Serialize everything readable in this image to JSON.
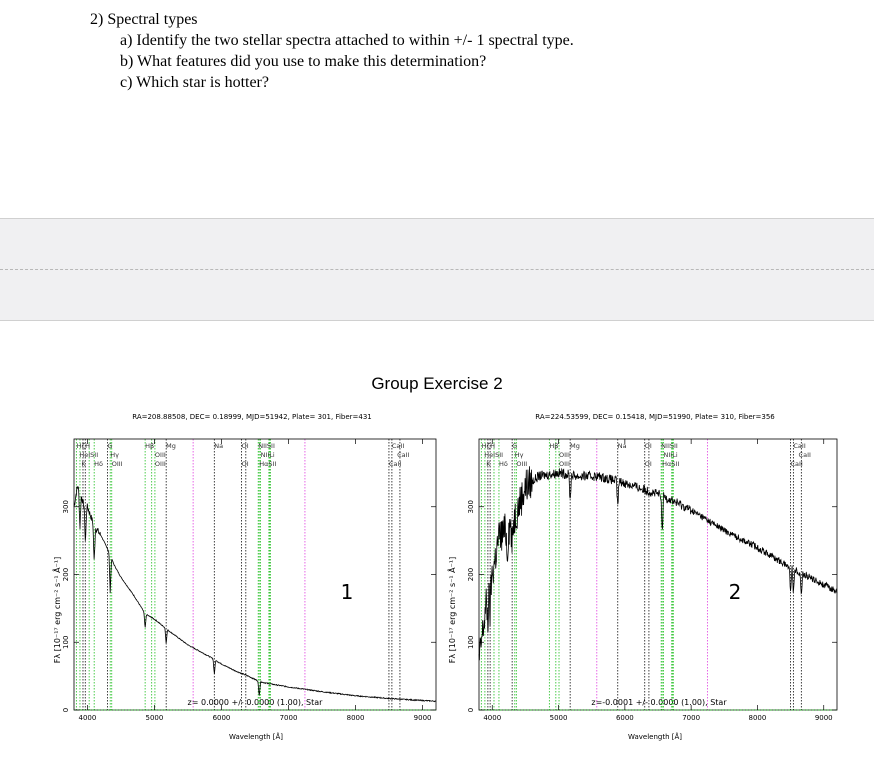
{
  "question": {
    "heading": "2)  Spectral types",
    "items": [
      "a)  Identify the two stellar spectra attached to within +/- 1 spectral type.",
      "b)  What features did you use to make this determination?",
      "c)  Which star is hotter?"
    ]
  },
  "figure_title": "Group Exercise 2",
  "y_axis_label": "Fλ [10⁻¹⁷ erg cm⁻² s⁻¹ Å⁻¹]",
  "x_axis_label": "Wavelength [Å]",
  "line_labels": {
    "row1": [
      "HζH",
      "G",
      "Hβ",
      "Mg",
      "Na",
      "OI",
      "NIISII",
      "CaII"
    ],
    "row2": [
      "HeISII",
      "Hγ",
      "OIII",
      "NIILi",
      "CaII"
    ],
    "row3": [
      "K",
      "Hδ",
      "OIII",
      "OI",
      "HαSII",
      "CaII"
    ]
  },
  "chart_data": [
    {
      "type": "line",
      "panel_label": "1",
      "header": "RA=208.88508, DEC= 0.18999, MJD=51942, Plate= 301, Fiber=431",
      "footer": "z= 0.0000 +/- 0.0000 (1.00), Star",
      "xlabel": "Wavelength [Å]",
      "xlim": [
        3800,
        9200
      ],
      "ylim": [
        0,
        400
      ],
      "x_ticks": [
        "4000",
        "5000",
        "6000",
        "7000",
        "8000",
        "9000"
      ],
      "y_ticks": [
        "0",
        "100",
        "200",
        "300"
      ],
      "x": [
        3800,
        3850,
        3900,
        3950,
        4000,
        4100,
        4200,
        4300,
        4400,
        4500,
        4700,
        4861,
        5000,
        5200,
        5500,
        5800,
        6000,
        6200,
        6400,
        6563,
        6700,
        7000,
        7500,
        8000,
        8500,
        9000,
        9200
      ],
      "y": [
        300,
        330,
        320,
        300,
        300,
        272,
        258,
        238,
        214,
        196,
        168,
        142,
        134,
        118,
        96,
        80,
        68,
        58,
        50,
        42,
        39,
        34,
        27,
        21,
        17,
        14,
        13
      ],
      "absorption_lines": [
        3889,
        3970,
        4101,
        4340,
        4861,
        5175,
        5893,
        6563
      ]
    },
    {
      "type": "line",
      "panel_label": "2",
      "header": "RA=224.53599, DEC= 0.15418, MJD=51990, Plate= 310, Fiber=356",
      "footer": "z=-0.0001 +/- 0.0000 (1.00), Star",
      "xlabel": "Wavelength [Å]",
      "xlim": [
        3800,
        9200
      ],
      "ylim": [
        0,
        400
      ],
      "x_ticks": [
        "4000",
        "5000",
        "6000",
        "7000",
        "8000",
        "9000"
      ],
      "y_ticks": [
        "0",
        "100",
        "200",
        "300"
      ],
      "x": [
        3800,
        3900,
        4000,
        4100,
        4300,
        4500,
        4700,
        5000,
        5300,
        5600,
        6000,
        6300,
        6600,
        7000,
        7500,
        8000,
        8500,
        9000,
        9200
      ],
      "y": [
        70,
        150,
        200,
        255,
        275,
        330,
        345,
        350,
        345,
        345,
        335,
        325,
        315,
        295,
        265,
        240,
        210,
        185,
        175
      ],
      "absorption_lines": [
        3934,
        3968,
        4227,
        4300,
        5175,
        5893,
        6563,
        8498,
        8542,
        8662
      ]
    }
  ]
}
